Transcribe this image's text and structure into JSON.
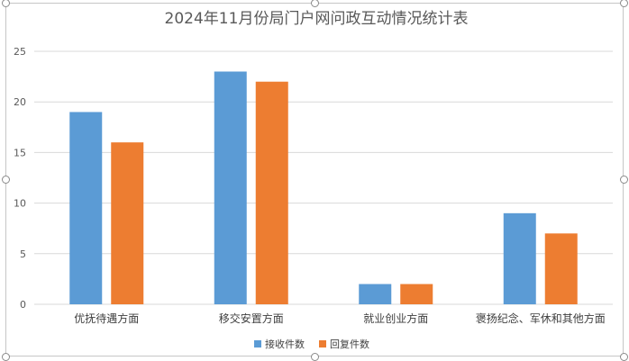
{
  "chart_data": {
    "type": "bar",
    "title": "2024年11月份局门户网问政互动情况统计表",
    "categories": [
      "优抚待遇方面",
      "移交安置方面",
      "就业创业方面",
      "褒扬纪念、军休和其他方面"
    ],
    "series": [
      {
        "name": "接收件数",
        "values": [
          19,
          23,
          2,
          9
        ],
        "color": "#5b9bd5"
      },
      {
        "name": "回复件数",
        "values": [
          16,
          22,
          2,
          7
        ],
        "color": "#ed7d31"
      }
    ],
    "ylim": [
      0,
      25
    ],
    "yticks": [
      0,
      5,
      10,
      15,
      20,
      25
    ],
    "grid": true,
    "legend_position": "bottom",
    "gridline_color": "#d9d9d9"
  }
}
